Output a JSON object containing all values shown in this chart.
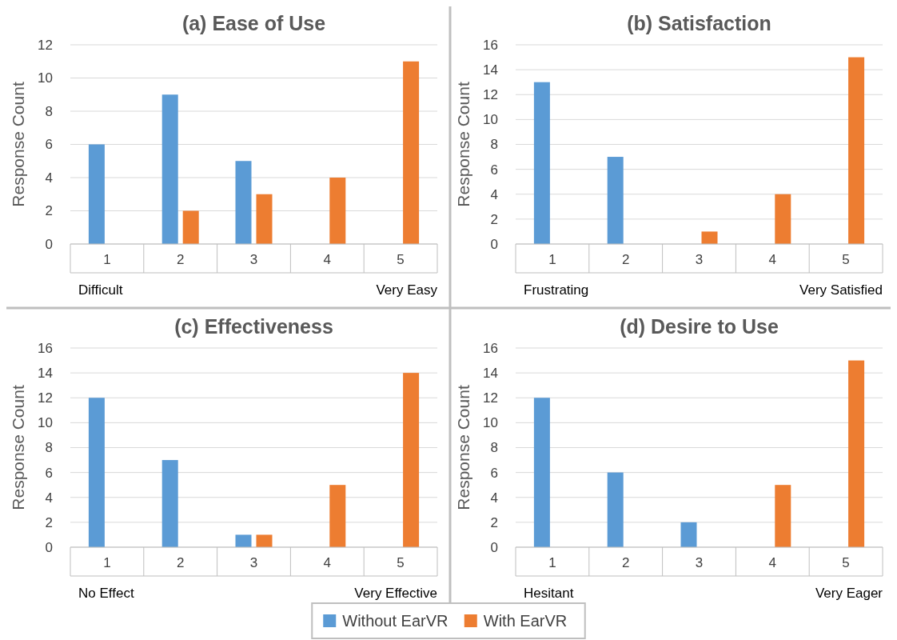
{
  "chart_data": [
    {
      "type": "bar",
      "title": "(a) Ease of Use",
      "ylabel": "Response Count",
      "categories": [
        "1",
        "2",
        "3",
        "4",
        "5"
      ],
      "series": [
        {
          "name": "Without EarVR",
          "color": "#5b9bd5",
          "values": [
            6,
            9,
            5,
            0,
            0
          ]
        },
        {
          "name": "With EarVR",
          "color": "#ed7d31",
          "values": [
            0,
            2,
            3,
            4,
            11
          ]
        }
      ],
      "ylim": [
        0,
        12
      ],
      "yticks": [
        0,
        2,
        4,
        6,
        8,
        10,
        12
      ],
      "grid": "y",
      "annotations": [
        "Difficult",
        "Very Easy"
      ],
      "legend": "bottom"
    },
    {
      "type": "bar",
      "title": "(b) Satisfaction",
      "ylabel": "Response Count",
      "categories": [
        "1",
        "2",
        "3",
        "4",
        "5"
      ],
      "series": [
        {
          "color": "#5b9bd5",
          "values": [
            13,
            7,
            0,
            0,
            0
          ]
        },
        {
          "color": "#ed7d31",
          "values": [
            0,
            0,
            1,
            4,
            15
          ]
        }
      ],
      "ylim": [
        0,
        16
      ],
      "yticks": [
        0,
        2,
        4,
        6,
        8,
        10,
        12,
        14,
        16
      ],
      "grid": "y",
      "annotations": [
        "Frustrating",
        "Very Satisfied"
      ]
    },
    {
      "type": "bar",
      "title": "(c) Effectiveness",
      "ylabel": "Response Count",
      "categories": [
        "1",
        "2",
        "3",
        "4",
        "5"
      ],
      "series": [
        {
          "color": "#5b9bd5",
          "values": [
            12,
            7,
            1,
            0,
            0
          ]
        },
        {
          "color": "#ed7d31",
          "values": [
            0,
            0,
            1,
            5,
            14
          ]
        }
      ],
      "ylim": [
        0,
        16
      ],
      "yticks": [
        0,
        2,
        4,
        6,
        8,
        10,
        12,
        14,
        16
      ],
      "grid": "y",
      "annotations": [
        "No Effect",
        "Very Effective"
      ]
    },
    {
      "type": "bar",
      "title": "(d) Desire to Use",
      "ylabel": "Response Count",
      "categories": [
        "1",
        "2",
        "3",
        "4",
        "5"
      ],
      "series": [
        {
          "color": "#5b9bd5",
          "values": [
            12,
            6,
            2,
            0,
            0
          ]
        },
        {
          "color": "#ed7d31",
          "values": [
            0,
            0,
            0,
            5,
            15
          ]
        }
      ],
      "ylim": [
        0,
        16
      ],
      "yticks": [
        0,
        2,
        4,
        6,
        8,
        10,
        12,
        14,
        16
      ],
      "grid": "y",
      "annotations": [
        "Hesitant",
        "Very Eager"
      ]
    }
  ]
}
